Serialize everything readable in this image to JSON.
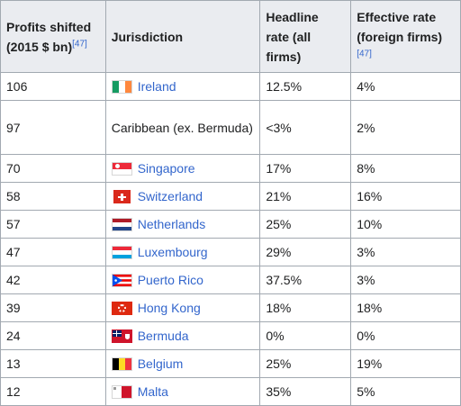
{
  "headers": {
    "profits": "Profits shifted (2015 $ bn)",
    "profits_ref": "[47]",
    "jurisdiction": "Jurisdiction",
    "headline": "Headline rate (all firms)",
    "effective": "Effective rate (foreign firms)",
    "effective_ref": "[47]"
  },
  "rows": [
    {
      "profits": "106",
      "jurisdiction": "Ireland",
      "flag": "ireland-flag-icon",
      "headline": "12.5%",
      "effective": "4%"
    },
    {
      "profits": "97",
      "jurisdiction": "Caribbean (ex. Bermuda)",
      "flag": "",
      "headline": "<3%",
      "effective": "2%"
    },
    {
      "profits": "70",
      "jurisdiction": "Singapore",
      "flag": "singapore-flag-icon",
      "headline": "17%",
      "effective": "8%"
    },
    {
      "profits": "58",
      "jurisdiction": "Switzerland",
      "flag": "switzerland-flag-icon",
      "headline": "21%",
      "effective": "16%"
    },
    {
      "profits": "57",
      "jurisdiction": "Netherlands",
      "flag": "netherlands-flag-icon",
      "headline": "25%",
      "effective": "10%"
    },
    {
      "profits": "47",
      "jurisdiction": "Luxembourg",
      "flag": "luxembourg-flag-icon",
      "headline": "29%",
      "effective": "3%"
    },
    {
      "profits": "42",
      "jurisdiction": "Puerto Rico",
      "flag": "puerto-rico-flag-icon",
      "headline": "37.5%",
      "effective": "3%"
    },
    {
      "profits": "39",
      "jurisdiction": "Hong Kong",
      "flag": "hong-kong-flag-icon",
      "headline": "18%",
      "effective": "18%"
    },
    {
      "profits": "24",
      "jurisdiction": "Bermuda",
      "flag": "bermuda-flag-icon",
      "headline": "0%",
      "effective": "0%"
    },
    {
      "profits": "13",
      "jurisdiction": "Belgium",
      "flag": "belgium-flag-icon",
      "headline": "25%",
      "effective": "19%"
    },
    {
      "profits": "12",
      "jurisdiction": "Malta",
      "flag": "malta-flag-icon",
      "headline": "35%",
      "effective": "5%"
    }
  ],
  "colors": {
    "link": "#3366cc",
    "header_bg": "#eaecf0",
    "border": "#a2a9b1"
  }
}
